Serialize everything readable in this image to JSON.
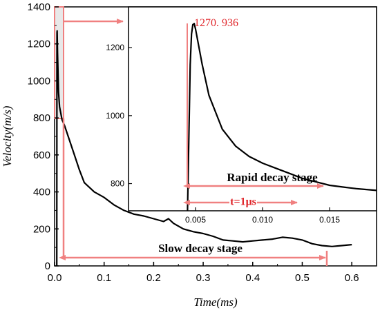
{
  "chart_data": [
    {
      "type": "line",
      "title": "",
      "xlabel": "Time(ms)",
      "ylabel": "Velocity(m/s)",
      "xlim": [
        0.0,
        0.65
      ],
      "ylim": [
        0,
        1400
      ],
      "x_ticks": [
        "0.0",
        "0.1",
        "0.2",
        "0.3",
        "0.4",
        "0.5",
        "0.6"
      ],
      "y_ticks": [
        "0",
        "200",
        "400",
        "600",
        "800",
        "1000",
        "1200",
        "1400"
      ],
      "series": [
        {
          "x": [
            0.0045,
            0.0047,
            0.0049,
            0.0051,
            0.006,
            0.008,
            0.01,
            0.015,
            0.02,
            0.03,
            0.04,
            0.05,
            0.06,
            0.08,
            0.1,
            0.12,
            0.14,
            0.16,
            0.18,
            0.2,
            0.22,
            0.23,
            0.24,
            0.26,
            0.28,
            0.3,
            0.32,
            0.34,
            0.36,
            0.38,
            0.4,
            0.42,
            0.44,
            0.46,
            0.48,
            0.5,
            0.52,
            0.54,
            0.56,
            0.58,
            0.6
          ],
          "y": [
            0,
            1100,
            1260,
            1270,
            1150,
            940,
            860,
            790,
            760,
            680,
            600,
            520,
            450,
            400,
            370,
            330,
            300,
            280,
            270,
            255,
            240,
            255,
            230,
            200,
            185,
            175,
            160,
            140,
            135,
            130,
            135,
            140,
            145,
            155,
            150,
            140,
            120,
            110,
            105,
            110,
            115
          ]
        }
      ],
      "annotations": [
        "Slow decay stage"
      ]
    },
    {
      "type": "line",
      "title": "",
      "xlim": [
        0.0,
        0.0185
      ],
      "ylim": [
        720,
        1320
      ],
      "x_ticks": [
        "0.005",
        "0.010",
        "0.015"
      ],
      "y_ticks": [
        "800",
        "1000",
        "1200"
      ],
      "series": [
        {
          "x": [
            0.0044,
            0.0046,
            0.0047,
            0.0048,
            0.0049,
            0.005,
            0.0055,
            0.006,
            0.007,
            0.008,
            0.009,
            0.01,
            0.011,
            0.012,
            0.013,
            0.014,
            0.015,
            0.016,
            0.017,
            0.0185
          ],
          "y": [
            720,
            1150,
            1240,
            1268,
            1270.936,
            1255,
            1150,
            1060,
            960,
            910,
            880,
            860,
            845,
            830,
            815,
            805,
            795,
            790,
            785,
            780
          ]
        }
      ],
      "peak_label": "1270. 936",
      "annotations": [
        "Rapid decay stage"
      ],
      "time_label": "t=1μs"
    }
  ],
  "colors": {
    "line": "#000000",
    "highlight": "#f08080",
    "peak_text": "#e0252a"
  }
}
